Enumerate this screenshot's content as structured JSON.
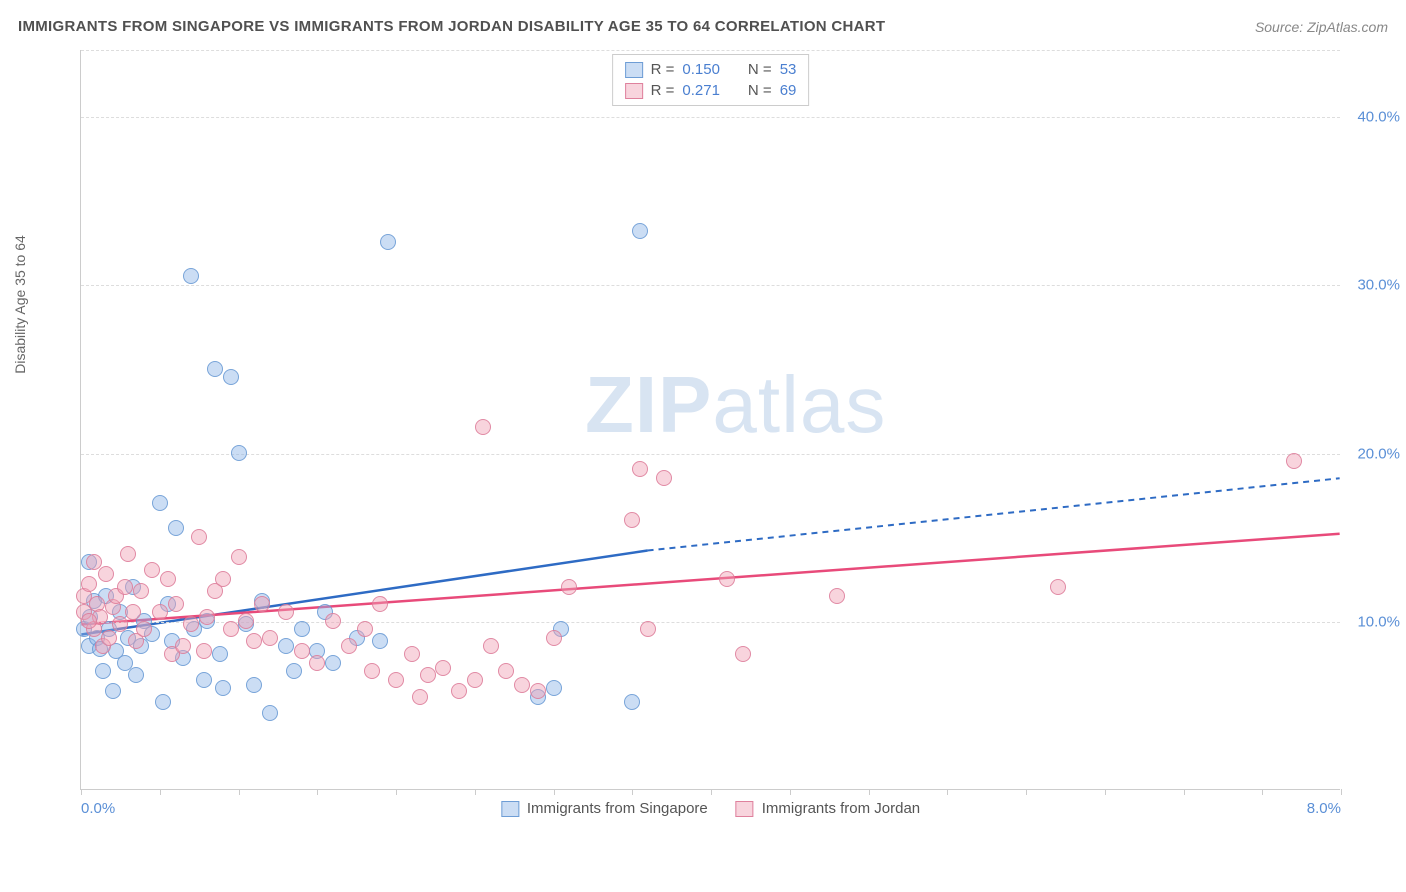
{
  "title": "IMMIGRANTS FROM SINGAPORE VS IMMIGRANTS FROM JORDAN DISABILITY AGE 35 TO 64 CORRELATION CHART",
  "source": "Source: ZipAtlas.com",
  "ylabel": "Disability Age 35 to 64",
  "watermark_a": "ZIP",
  "watermark_b": "atlas",
  "chart": {
    "type": "scatter",
    "background_color": "#ffffff",
    "grid_color": "#dddddd",
    "axis_color": "#cccccc",
    "label_color": "#666666",
    "tick_color": "#5a8fd6",
    "xlim": [
      0.0,
      8.0
    ],
    "ylim": [
      0.0,
      44.0
    ],
    "y_gridlines": [
      10.0,
      20.0,
      30.0,
      40.0
    ],
    "y_ticklabels": [
      "10.0%",
      "20.0%",
      "30.0%",
      "40.0%"
    ],
    "x_ticks": [
      0.0,
      0.5,
      1.0,
      1.5,
      2.0,
      2.5,
      3.0,
      3.5,
      4.0,
      4.5,
      5.0,
      5.5,
      6.0,
      6.5,
      7.0,
      7.5,
      8.0
    ],
    "x_ticklabels": {
      "0.0": "0.0%",
      "8.0": "8.0%"
    },
    "series": [
      {
        "name": "Immigrants from Singapore",
        "color_fill": "rgba(140,180,230,0.45)",
        "color_stroke": "#6496d2",
        "r": 0.15,
        "n": 53,
        "marker_radius": 8,
        "trend": {
          "x1": 0.0,
          "y1": 9.2,
          "x2": 3.6,
          "y2": 14.2,
          "x2_dash": 8.0,
          "y2_dash": 18.5,
          "stroke": "#2e6bc4",
          "width": 2.5
        },
        "points": [
          [
            0.02,
            9.5
          ],
          [
            0.05,
            13.5
          ],
          [
            0.05,
            8.5
          ],
          [
            0.06,
            10.2
          ],
          [
            0.08,
            11.2
          ],
          [
            0.1,
            9.0
          ],
          [
            0.12,
            8.3
          ],
          [
            0.14,
            7.0
          ],
          [
            0.16,
            11.5
          ],
          [
            0.18,
            9.5
          ],
          [
            0.2,
            5.8
          ],
          [
            0.22,
            8.2
          ],
          [
            0.25,
            10.5
          ],
          [
            0.28,
            7.5
          ],
          [
            0.3,
            9.0
          ],
          [
            0.33,
            12.0
          ],
          [
            0.35,
            6.8
          ],
          [
            0.38,
            8.5
          ],
          [
            0.4,
            10.0
          ],
          [
            0.45,
            9.2
          ],
          [
            0.5,
            17.0
          ],
          [
            0.52,
            5.2
          ],
          [
            0.55,
            11.0
          ],
          [
            0.58,
            8.8
          ],
          [
            0.6,
            15.5
          ],
          [
            0.65,
            7.8
          ],
          [
            0.7,
            30.5
          ],
          [
            0.72,
            9.5
          ],
          [
            0.78,
            6.5
          ],
          [
            0.8,
            10.0
          ],
          [
            0.85,
            25.0
          ],
          [
            0.88,
            8.0
          ],
          [
            0.9,
            6.0
          ],
          [
            0.95,
            24.5
          ],
          [
            1.0,
            20.0
          ],
          [
            1.05,
            9.8
          ],
          [
            1.1,
            6.2
          ],
          [
            1.15,
            11.2
          ],
          [
            1.2,
            4.5
          ],
          [
            1.3,
            8.5
          ],
          [
            1.35,
            7.0
          ],
          [
            1.4,
            9.5
          ],
          [
            1.5,
            8.2
          ],
          [
            1.55,
            10.5
          ],
          [
            1.6,
            7.5
          ],
          [
            1.75,
            9.0
          ],
          [
            1.9,
            8.8
          ],
          [
            1.95,
            32.5
          ],
          [
            2.9,
            5.5
          ],
          [
            3.0,
            6.0
          ],
          [
            3.05,
            9.5
          ],
          [
            3.5,
            5.2
          ],
          [
            3.55,
            33.2
          ]
        ]
      },
      {
        "name": "Immigrants from Jordan",
        "color_fill": "rgba(240,160,180,0.45)",
        "color_stroke": "#dc7896",
        "r": 0.271,
        "n": 69,
        "marker_radius": 8,
        "trend": {
          "x1": 0.0,
          "y1": 9.8,
          "x2": 8.0,
          "y2": 15.2,
          "stroke": "#e84a7a",
          "width": 2.5
        },
        "points": [
          [
            0.02,
            10.5
          ],
          [
            0.02,
            11.5
          ],
          [
            0.05,
            12.2
          ],
          [
            0.08,
            13.5
          ],
          [
            0.08,
            9.5
          ],
          [
            0.1,
            11.0
          ],
          [
            0.12,
            10.2
          ],
          [
            0.14,
            8.5
          ],
          [
            0.16,
            12.8
          ],
          [
            0.18,
            9.0
          ],
          [
            0.2,
            10.8
          ],
          [
            0.22,
            11.5
          ],
          [
            0.25,
            9.8
          ],
          [
            0.28,
            12.0
          ],
          [
            0.3,
            14.0
          ],
          [
            0.33,
            10.5
          ],
          [
            0.35,
            8.8
          ],
          [
            0.38,
            11.8
          ],
          [
            0.4,
            9.5
          ],
          [
            0.45,
            13.0
          ],
          [
            0.5,
            10.5
          ],
          [
            0.55,
            12.5
          ],
          [
            0.58,
            8.0
          ],
          [
            0.6,
            11.0
          ],
          [
            0.65,
            8.5
          ],
          [
            0.7,
            9.8
          ],
          [
            0.75,
            15.0
          ],
          [
            0.78,
            8.2
          ],
          [
            0.8,
            10.2
          ],
          [
            0.85,
            11.8
          ],
          [
            0.9,
            12.5
          ],
          [
            0.95,
            9.5
          ],
          [
            1.0,
            13.8
          ],
          [
            1.05,
            10.0
          ],
          [
            1.1,
            8.8
          ],
          [
            1.15,
            11.0
          ],
          [
            1.2,
            9.0
          ],
          [
            1.3,
            10.5
          ],
          [
            1.4,
            8.2
          ],
          [
            1.5,
            7.5
          ],
          [
            1.6,
            10.0
          ],
          [
            1.7,
            8.5
          ],
          [
            1.8,
            9.5
          ],
          [
            1.85,
            7.0
          ],
          [
            1.9,
            11.0
          ],
          [
            2.0,
            6.5
          ],
          [
            2.1,
            8.0
          ],
          [
            2.15,
            5.5
          ],
          [
            2.2,
            6.8
          ],
          [
            2.3,
            7.2
          ],
          [
            2.4,
            5.8
          ],
          [
            2.5,
            6.5
          ],
          [
            2.55,
            21.5
          ],
          [
            2.6,
            8.5
          ],
          [
            2.7,
            7.0
          ],
          [
            2.8,
            6.2
          ],
          [
            2.9,
            5.8
          ],
          [
            3.0,
            9.0
          ],
          [
            3.1,
            12.0
          ],
          [
            3.5,
            16.0
          ],
          [
            3.55,
            19.0
          ],
          [
            3.6,
            9.5
          ],
          [
            3.7,
            18.5
          ],
          [
            4.1,
            12.5
          ],
          [
            4.2,
            8.0
          ],
          [
            4.8,
            11.5
          ],
          [
            6.2,
            12.0
          ],
          [
            7.7,
            19.5
          ],
          [
            0.05,
            10.0
          ]
        ]
      }
    ]
  },
  "legend_top": [
    {
      "swatch": "a",
      "r_label": "R =",
      "r_val": "0.150",
      "n_label": "N =",
      "n_val": "53"
    },
    {
      "swatch": "b",
      "r_label": "R =",
      "r_val": "0.271",
      "n_label": "N =",
      "n_val": "69"
    }
  ],
  "legend_bottom": [
    {
      "swatch": "a",
      "label": "Immigrants from Singapore"
    },
    {
      "swatch": "b",
      "label": "Immigrants from Jordan"
    }
  ]
}
